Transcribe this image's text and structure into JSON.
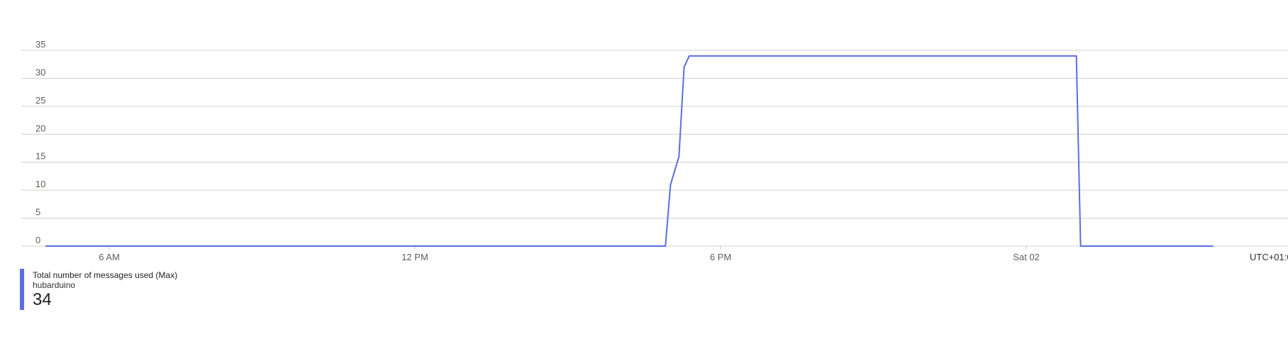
{
  "chart_data": {
    "type": "line",
    "ylim": [
      0,
      35
    ],
    "y_ticks": [
      "0",
      "5",
      "10",
      "15",
      "20",
      "25",
      "30",
      "35"
    ],
    "x_ticks": [
      "6 AM",
      "12 PM",
      "6 PM",
      "Sat 02"
    ],
    "timezone": "UTC+01:0",
    "grid": true,
    "series": [
      {
        "name": "Total number of messages used (Max)",
        "resource": "hubarduino",
        "color": "#5b6ee1",
        "x": [
          "04:45",
          "06:00",
          "12:00",
          "16:55",
          "17:01",
          "17:11",
          "17:17",
          "17:23",
          "18:00",
          "21:00",
          "00:00",
          "00:59",
          "01:04",
          "03:40"
        ],
        "y": [
          0,
          0,
          0,
          0,
          11,
          16,
          32,
          34,
          34,
          34,
          34,
          34,
          0,
          0
        ]
      }
    ]
  },
  "legend": {
    "title": "Total number of messages used (Max)",
    "resource": "hubarduino",
    "value": "34"
  }
}
